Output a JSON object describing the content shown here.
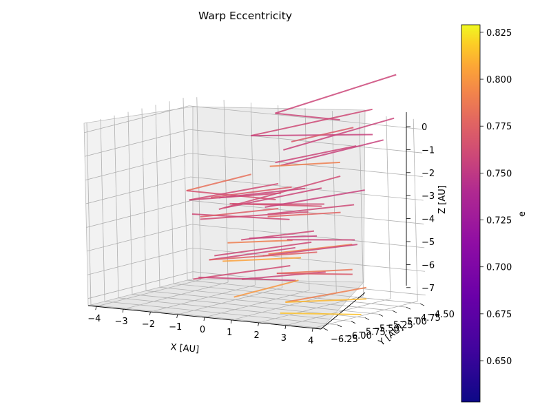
{
  "chart_data": {
    "type": "3d-line-segments",
    "title": "Warp Eccentricity",
    "xlabel": "X [AU]",
    "ylabel": "Y [AU]",
    "zlabel": "Z [AU]",
    "xlim": [
      -4.3,
      4.3
    ],
    "ylim": [
      -6.3,
      -4.4
    ],
    "zlim": [
      -7.3,
      0.4
    ],
    "x_ticks": [
      "−4",
      "−3",
      "−2",
      "−1",
      "0",
      "1",
      "2",
      "3",
      "4"
    ],
    "y_ticks": [
      "−6.25",
      "−6.00",
      "−5.75",
      "−5.50",
      "−5.25",
      "−5.00",
      "−4.75",
      "−4.50"
    ],
    "z_ticks": [
      "0",
      "−1",
      "−2",
      "−3",
      "−4",
      "−5",
      "−6",
      "−7"
    ],
    "grid": true,
    "colorbar": {
      "label": "e",
      "colormap": "plasma",
      "min": 0.628,
      "max": 0.829,
      "ticks": [
        "0.650",
        "0.675",
        "0.700",
        "0.725",
        "0.750",
        "0.775",
        "0.800",
        "0.825"
      ],
      "tick_values": [
        0.65,
        0.675,
        0.7,
        0.725,
        0.75,
        0.775,
        0.8,
        0.825
      ]
    },
    "segments": [
      {
        "x0": -0.5,
        "y0": -4.7,
        "z0": 0.3,
        "x1": 3.4,
        "y1": -4.4,
        "z1": 2.2,
        "e": 0.758
      },
      {
        "x0": -0.5,
        "y0": -4.7,
        "z0": 0.3,
        "x1": 1.9,
        "y1": -4.7,
        "z1": 0.3,
        "e": 0.758
      },
      {
        "x0": -0.8,
        "y0": -5.0,
        "z0": -0.5,
        "x1": 2.9,
        "y1": -4.6,
        "z1": 0.8,
        "e": 0.76
      },
      {
        "x0": -0.8,
        "y0": -5.0,
        "z0": -0.5,
        "x1": 3.3,
        "y1": -4.8,
        "z1": -0.1,
        "e": 0.756
      },
      {
        "x0": 0.9,
        "y0": -5.1,
        "z0": -0.5,
        "x1": 2.8,
        "y1": -4.9,
        "z1": 0.2,
        "e": 0.77
      },
      {
        "x0": 0.8,
        "y0": -5.2,
        "z0": -0.8,
        "x1": 3.9,
        "y1": -4.7,
        "z1": 0.6,
        "e": 0.757
      },
      {
        "x0": 0.9,
        "y0": -5.4,
        "z0": -1.2,
        "x1": 3.3,
        "y1": -5.1,
        "z1": -0.4,
        "e": 0.758
      },
      {
        "x0": 1.1,
        "y0": -5.4,
        "z0": -1.3,
        "x1": 3.9,
        "y1": -4.9,
        "z1": -0.2,
        "e": 0.756
      },
      {
        "x0": 0.9,
        "y0": -5.5,
        "z0": -1.3,
        "x1": 3.1,
        "y1": -5.3,
        "z1": -1.0,
        "e": 0.79
      },
      {
        "x0": -2.0,
        "y0": -5.6,
        "z0": -2.6,
        "x1": 0.0,
        "y1": -5.4,
        "z1": -1.8,
        "e": 0.783
      },
      {
        "x0": -2.0,
        "y0": -5.6,
        "z0": -2.6,
        "x1": 1.3,
        "y1": -5.6,
        "z1": -2.6,
        "e": 0.765
      },
      {
        "x0": -1.7,
        "y0": -5.7,
        "z0": -2.9,
        "x1": 1.2,
        "y1": -5.5,
        "z1": -2.0,
        "e": 0.762
      },
      {
        "x0": -1.7,
        "y0": -5.7,
        "z0": -2.9,
        "x1": 1.5,
        "y1": -5.6,
        "z1": -2.3,
        "e": 0.76
      },
      {
        "x0": -0.2,
        "y0": -5.8,
        "z0": -3.0,
        "x1": 2.8,
        "y1": -5.5,
        "z1": -2.0,
        "e": 0.758
      },
      {
        "x0": -0.2,
        "y0": -5.9,
        "z0": -3.0,
        "x1": 3.3,
        "y1": -5.4,
        "z1": -1.5,
        "e": 0.762
      },
      {
        "x0": 0.0,
        "y0": -5.8,
        "z0": -2.8,
        "x1": 3.2,
        "y1": -5.7,
        "z1": -2.6,
        "e": 0.765
      },
      {
        "x0": 0.1,
        "y0": -5.8,
        "z0": -2.8,
        "x1": 3.3,
        "y1": -5.7,
        "z1": -2.5,
        "e": 0.762
      },
      {
        "x0": -0.9,
        "y0": -5.7,
        "z0": -2.7,
        "x1": 1.9,
        "y1": -5.6,
        "z1": -2.0,
        "e": 0.77
      },
      {
        "x0": -0.4,
        "y0": -5.8,
        "z0": -2.6,
        "x1": 2.4,
        "y1": -5.6,
        "z1": -2.0,
        "e": 0.758
      },
      {
        "x0": 1.3,
        "y0": -5.8,
        "z0": -2.8,
        "x1": 4.4,
        "y1": -5.5,
        "z1": -1.9,
        "e": 0.756
      },
      {
        "x0": 1.6,
        "y0": -5.9,
        "z0": -3.0,
        "x1": 4.4,
        "y1": -5.7,
        "z1": -2.4,
        "e": 0.76
      },
      {
        "x0": 1.6,
        "y0": -5.9,
        "z0": -3.1,
        "x1": 4.1,
        "y1": -5.8,
        "z1": -2.7,
        "e": 0.776
      },
      {
        "x0": -1.4,
        "y0": -5.8,
        "z0": -3.4,
        "x1": 2.0,
        "y1": -5.7,
        "z1": -3.3,
        "e": 0.76
      },
      {
        "x0": -0.9,
        "y0": -5.9,
        "z0": -3.4,
        "x1": 1.8,
        "y1": -5.8,
        "z1": -2.8,
        "e": 0.773
      },
      {
        "x0": -0.9,
        "y0": -5.9,
        "z0": -3.5,
        "x1": 2.7,
        "y1": -5.7,
        "z1": -2.9,
        "e": 0.762
      },
      {
        "x0": 0.6,
        "y0": -5.9,
        "z0": -4.2,
        "x1": 3.1,
        "y1": -5.8,
        "z1": -3.6,
        "e": 0.76
      },
      {
        "x0": 0.3,
        "y0": -6.0,
        "z0": -4.3,
        "x1": 2.5,
        "y1": -5.9,
        "z1": -4.0,
        "e": 0.79
      },
      {
        "x0": 0.9,
        "y0": -5.9,
        "z0": -4.1,
        "x1": 3.2,
        "y1": -5.8,
        "z1": -3.8,
        "e": 0.756
      },
      {
        "x0": 2.3,
        "y0": -5.9,
        "z0": -4.0,
        "x1": 4.6,
        "y1": -5.8,
        "z1": -3.8,
        "e": 0.758
      },
      {
        "x0": 1.8,
        "y0": -6.0,
        "z0": -4.6,
        "x1": 4.5,
        "y1": -5.8,
        "z1": -4.0,
        "e": 0.79
      },
      {
        "x0": 1.6,
        "y0": -6.0,
        "z0": -4.7,
        "x1": 4.9,
        "y1": -5.9,
        "z1": -3.9,
        "e": 0.758
      },
      {
        "x0": -0.4,
        "y0": -6.0,
        "z0": -5.1,
        "x1": 2.6,
        "y1": -5.9,
        "z1": -4.3,
        "e": 0.758
      },
      {
        "x0": -0.4,
        "y0": -6.0,
        "z0": -5.1,
        "x1": 3.4,
        "y1": -5.9,
        "z1": -4.4,
        "e": 0.775
      },
      {
        "x0": -0.2,
        "y0": -6.0,
        "z0": -4.9,
        "x1": 3.2,
        "y1": -5.9,
        "z1": -4.0,
        "e": 0.76
      },
      {
        "x0": 0.1,
        "y0": -6.0,
        "z0": -5.1,
        "x1": 2.8,
        "y1": -5.9,
        "z1": -4.7,
        "e": 0.805
      },
      {
        "x0": 1.0,
        "y0": -6.1,
        "z0": -5.7,
        "x1": 3.7,
        "y1": -5.9,
        "z1": -5.2,
        "e": 0.758
      },
      {
        "x0": 2.3,
        "y0": -6.1,
        "z0": -5.3,
        "x1": 4.9,
        "y1": -6.0,
        "z1": -4.9,
        "e": 0.785
      },
      {
        "x0": 2.3,
        "y0": -6.1,
        "z0": -5.3,
        "x1": 4.9,
        "y1": -6.0,
        "z1": -5.1,
        "e": 0.77
      },
      {
        "x0": -0.6,
        "y0": -6.1,
        "z0": -5.8,
        "x1": 2.8,
        "y1": -6.0,
        "z1": -5.6,
        "e": 0.758
      },
      {
        "x0": -0.8,
        "y0": -6.1,
        "z0": -5.9,
        "x1": 2.6,
        "y1": -6.0,
        "z1": -5.0,
        "e": 0.762
      },
      {
        "x0": 0.9,
        "y0": -6.2,
        "z0": -6.4,
        "x1": 3.1,
        "y1": -6.1,
        "z1": -5.5,
        "e": 0.8
      },
      {
        "x0": 2.8,
        "y0": -6.2,
        "z0": -6.4,
        "x1": 5.4,
        "y1": -6.0,
        "z1": -5.6,
        "e": 0.79
      },
      {
        "x0": 2.8,
        "y0": -6.2,
        "z0": -6.4,
        "x1": 5.6,
        "y1": -6.1,
        "z1": -6.0,
        "e": 0.812
      },
      {
        "x0": 2.8,
        "y0": -6.3,
        "z0": -6.8,
        "x1": 5.6,
        "y1": -6.2,
        "z1": -6.6,
        "e": 0.815
      }
    ]
  }
}
